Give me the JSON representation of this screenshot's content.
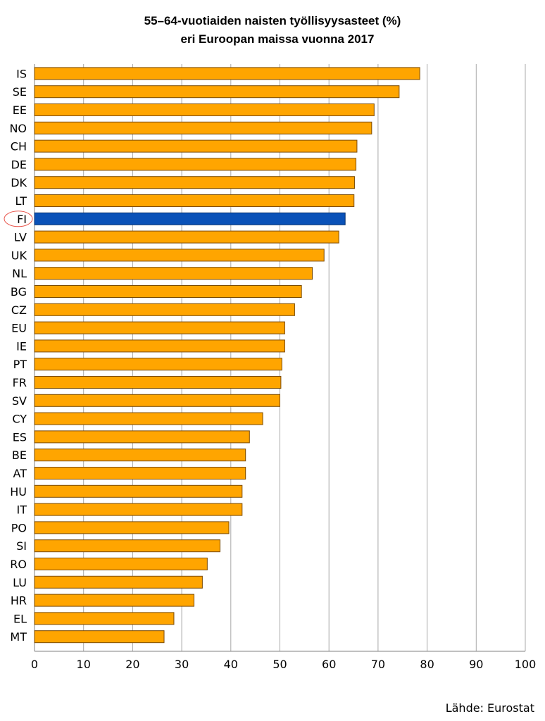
{
  "chart_data": {
    "type": "bar",
    "orientation": "horizontal",
    "title_lines": [
      "55–64-vuotiaiden naisten työllisyysasteet (%)",
      "eri Euroopan maissa vuonna 2017"
    ],
    "categories": [
      "IS",
      "SE",
      "EE",
      "NO",
      "CH",
      "DE",
      "DK",
      "LT",
      "FI",
      "LV",
      "UK",
      "NL",
      "BG",
      "CZ",
      "EU",
      "IE",
      "PT",
      "FR",
      "SV",
      "CY",
      "ES",
      "BE",
      "AT",
      "HU",
      "IT",
      "PO",
      "SI",
      "RO",
      "LU",
      "HR",
      "EL",
      "MT"
    ],
    "values": [
      78.5,
      74.3,
      69.2,
      68.7,
      65.7,
      65.5,
      65.2,
      65.1,
      63.3,
      62.0,
      59.0,
      56.6,
      54.4,
      53.0,
      51.0,
      51.0,
      50.4,
      50.2,
      50.0,
      46.5,
      43.8,
      43.0,
      43.0,
      42.3,
      42.3,
      39.6,
      37.8,
      35.2,
      34.2,
      32.5,
      28.4,
      26.4
    ],
    "highlight": "FI",
    "xlim": [
      0,
      100
    ],
    "xticks": [
      0,
      10,
      20,
      30,
      40,
      50,
      60,
      70,
      80,
      90,
      100
    ],
    "grid": true,
    "colors": {
      "bar": "#FFA500",
      "bar_border": "#7a4a00",
      "highlight": "#0A52B8",
      "grid": "#A8A8A8",
      "circle": "#E8534A"
    },
    "source": "Lähde: Eurostat"
  }
}
